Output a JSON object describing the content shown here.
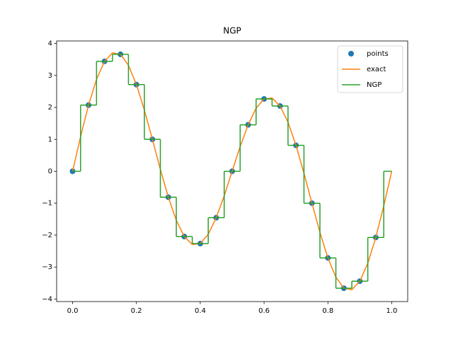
{
  "chart_data": {
    "type": "line",
    "title": "NGP",
    "xlim": [
      -0.05,
      1.05
    ],
    "ylim": [
      -4.08,
      4.08
    ],
    "xticks": [
      {
        "value": 0,
        "label": "0.0"
      },
      {
        "value": 0.2,
        "label": "0.2"
      },
      {
        "value": 0.4,
        "label": "0.4"
      },
      {
        "value": 0.6,
        "label": "0.6"
      },
      {
        "value": 0.8,
        "label": "0.8"
      },
      {
        "value": 1,
        "label": "1.0"
      }
    ],
    "yticks": [
      {
        "value": -4,
        "label": "−4"
      },
      {
        "value": -3,
        "label": "−3"
      },
      {
        "value": -2,
        "label": "−2"
      },
      {
        "value": -1,
        "label": "−1"
      },
      0,
      1,
      2,
      3,
      4
    ],
    "legend": "upper right",
    "series": [
      {
        "name": "points",
        "color": "#1f77b4",
        "style": "markers",
        "x": [
          0,
          0.05,
          0.1,
          0.15,
          0.2,
          0.25,
          0.3,
          0.35,
          0.4,
          0.45,
          0.5,
          0.55,
          0.6,
          0.65,
          0.7,
          0.75,
          0.8,
          0.85,
          0.9,
          0.95
        ],
        "values": [
          0,
          2.072,
          3.441,
          3.662,
          2.714,
          1,
          -0.812,
          -2.044,
          -2.265,
          -1.454,
          0,
          1.454,
          2.265,
          2.044,
          0.812,
          -1,
          -2.714,
          -3.662,
          -3.441,
          -2.072
        ]
      },
      {
        "name": "exact",
        "color": "#ff7f0e",
        "style": "line",
        "x": [
          0,
          0.025,
          0.05,
          0.075,
          0.1,
          0.125,
          0.15,
          0.175,
          0.2,
          0.225,
          0.25,
          0.275,
          0.3,
          0.325,
          0.35,
          0.375,
          0.4,
          0.425,
          0.45,
          0.475,
          0.5,
          0.525,
          0.55,
          0.575,
          0.6,
          0.625,
          0.65,
          0.675,
          0.7,
          0.725,
          0.75,
          0.775,
          0.8,
          0.825,
          0.85,
          0.875,
          0.9,
          0.925,
          0.95,
          0.975,
          1
        ],
        "values": [
          0,
          1.083,
          2.072,
          2.881,
          3.441,
          3.707,
          3.662,
          3.318,
          2.714,
          1.915,
          1,
          0.061,
          -0.812,
          -1.536,
          -2.044,
          -2.293,
          -2.265,
          -1.973,
          -1.454,
          -0.771,
          0,
          0.771,
          1.454,
          1.973,
          2.265,
          2.293,
          2.044,
          1.536,
          0.812,
          -0.061,
          -1,
          -1.915,
          -2.714,
          -3.318,
          -3.662,
          -3.707,
          -3.441,
          -2.881,
          -2.072,
          -1.083,
          0
        ]
      },
      {
        "name": "NGP",
        "color": "#2ca02c",
        "style": "steps-mid",
        "x": [
          0,
          0.05,
          0.1,
          0.15,
          0.2,
          0.25,
          0.3,
          0.35,
          0.4,
          0.45,
          0.5,
          0.55,
          0.6,
          0.65,
          0.7,
          0.75,
          0.8,
          0.85,
          0.9,
          0.95,
          1
        ],
        "values": [
          0,
          2.072,
          3.441,
          3.662,
          2.714,
          1,
          -0.812,
          -2.044,
          -2.265,
          -1.454,
          0,
          1.454,
          2.265,
          2.044,
          0.812,
          -1,
          -2.714,
          -3.662,
          -3.441,
          -2.072,
          0
        ]
      }
    ]
  }
}
